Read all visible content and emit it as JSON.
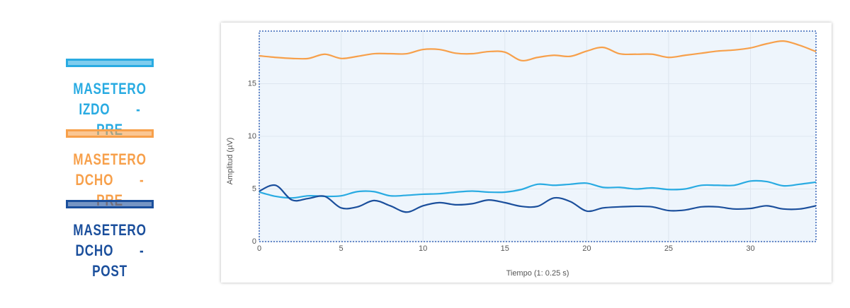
{
  "chart_data": {
    "type": "line",
    "x_label": "Tiempo (1: 0.25 s)",
    "y_label": "Amplitud (µV)",
    "x": [
      0,
      1,
      2,
      3,
      4,
      5,
      6,
      7,
      8,
      9,
      10,
      11,
      12,
      13,
      14,
      15,
      16,
      17,
      18,
      19,
      20,
      21,
      22,
      23,
      24,
      25,
      26,
      27,
      28,
      29,
      30,
      31,
      32,
      33,
      34
    ],
    "xlim": [
      0,
      34
    ],
    "xticks": [
      0,
      5,
      10,
      15,
      20,
      25,
      30
    ],
    "ylim": [
      0,
      20
    ],
    "yticks": [
      0,
      5,
      10,
      15
    ],
    "grid": true,
    "legend": "left",
    "series": [
      {
        "name": "MASETERO IZDO - PRE",
        "color": "#29abe2",
        "values": [
          4.7,
          4.3,
          4.15,
          4.35,
          4.3,
          4.35,
          4.75,
          4.75,
          4.35,
          4.4,
          4.5,
          4.55,
          4.7,
          4.8,
          4.7,
          4.7,
          4.95,
          5.45,
          5.35,
          5.45,
          5.55,
          5.15,
          5.15,
          5.0,
          5.1,
          4.95,
          5.0,
          5.35,
          5.35,
          5.35,
          5.75,
          5.7,
          5.3,
          5.45,
          5.65
        ]
      },
      {
        "name": "MASETERO DCHO - PRE",
        "color": "#f7a04b",
        "values": [
          17.65,
          17.5,
          17.4,
          17.4,
          17.8,
          17.4,
          17.6,
          17.85,
          17.85,
          17.85,
          18.25,
          18.25,
          17.9,
          17.85,
          18.05,
          18.0,
          17.2,
          17.5,
          17.7,
          17.6,
          18.1,
          18.45,
          17.85,
          17.8,
          17.8,
          17.5,
          17.7,
          17.9,
          18.1,
          18.2,
          18.4,
          18.8,
          19.05,
          18.65,
          18.05
        ]
      },
      {
        "name": "MASETERO DCHO - POST",
        "color": "#1b4f9c",
        "values": [
          4.8,
          5.35,
          3.95,
          4.1,
          4.3,
          3.2,
          3.3,
          3.9,
          3.4,
          2.8,
          3.4,
          3.7,
          3.5,
          3.6,
          3.95,
          3.7,
          3.35,
          3.35,
          4.15,
          3.8,
          2.9,
          3.2,
          3.3,
          3.35,
          3.3,
          2.95,
          3.0,
          3.3,
          3.3,
          3.1,
          3.15,
          3.4,
          3.1,
          3.1,
          3.4
        ]
      }
    ]
  }
}
